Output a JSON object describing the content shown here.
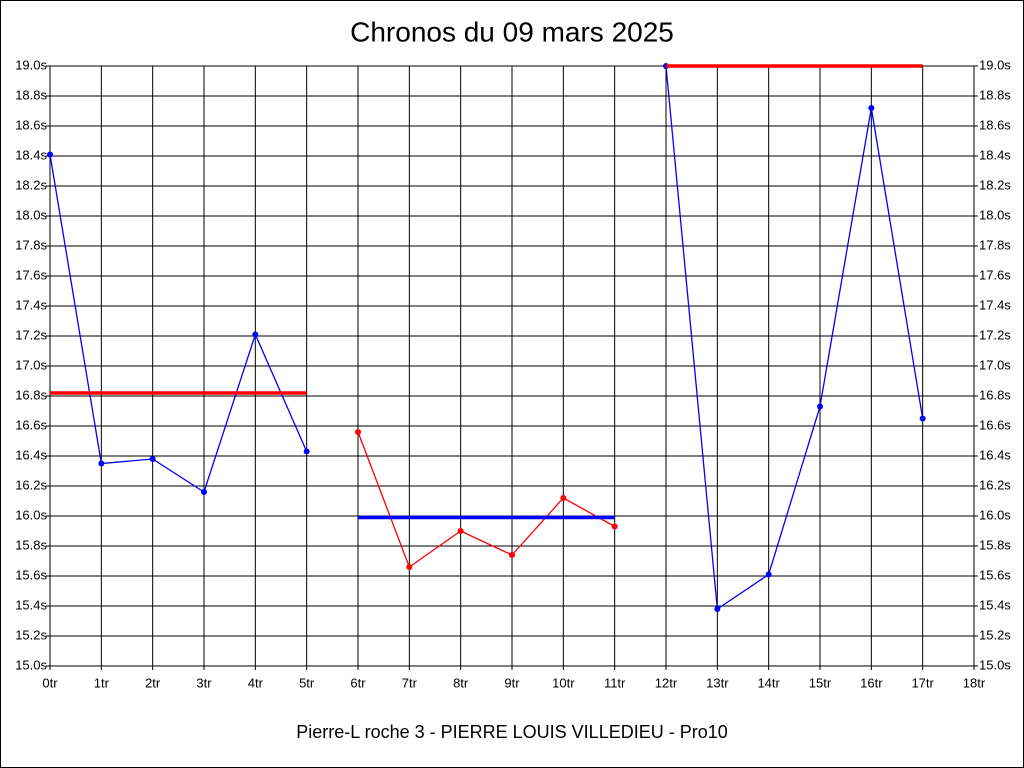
{
  "chart_data": {
    "type": "line",
    "title": "Chronos du 09 mars 2025",
    "xlabel": "Pierre-L roche 3 - PIERRE LOUIS VILLEDIEU - Pro10",
    "xlim": [
      0,
      18
    ],
    "ylim": [
      15,
      19
    ],
    "y2lim": [
      15,
      19
    ],
    "grid": true,
    "xticks": [
      {
        "value": 0,
        "label": "0tr"
      },
      {
        "value": 1,
        "label": "1tr"
      },
      {
        "value": 2,
        "label": "2tr"
      },
      {
        "value": 3,
        "label": "3tr"
      },
      {
        "value": 4,
        "label": "4tr"
      },
      {
        "value": 5,
        "label": "5tr"
      },
      {
        "value": 6,
        "label": "6tr"
      },
      {
        "value": 7,
        "label": "7tr"
      },
      {
        "value": 8,
        "label": "8tr"
      },
      {
        "value": 9,
        "label": "9tr"
      },
      {
        "value": 10,
        "label": "10tr"
      },
      {
        "value": 11,
        "label": "11tr"
      },
      {
        "value": 12,
        "label": "12tr"
      },
      {
        "value": 13,
        "label": "13tr"
      },
      {
        "value": 14,
        "label": "14tr"
      },
      {
        "value": 15,
        "label": "15tr"
      },
      {
        "value": 16,
        "label": "16tr"
      },
      {
        "value": 17,
        "label": "17tr"
      },
      {
        "value": 18,
        "label": "18tr"
      }
    ],
    "yticks": [
      {
        "value": 15.0,
        "label": "15.0s"
      },
      {
        "value": 15.2,
        "label": "15.2s"
      },
      {
        "value": 15.4,
        "label": "15.4s"
      },
      {
        "value": 15.6,
        "label": "15.6s"
      },
      {
        "value": 15.8,
        "label": "15.8s"
      },
      {
        "value": 16.0,
        "label": "16.0s"
      },
      {
        "value": 16.2,
        "label": "16.2s"
      },
      {
        "value": 16.4,
        "label": "16.4s"
      },
      {
        "value": 16.6,
        "label": "16.6s"
      },
      {
        "value": 16.8,
        "label": "16.8s"
      },
      {
        "value": 17.0,
        "label": "17.0s"
      },
      {
        "value": 17.2,
        "label": "17.2s"
      },
      {
        "value": 17.4,
        "label": "17.4s"
      },
      {
        "value": 17.6,
        "label": "17.6s"
      },
      {
        "value": 17.8,
        "label": "17.8s"
      },
      {
        "value": 18.0,
        "label": "18.0s"
      },
      {
        "value": 18.2,
        "label": "18.2s"
      },
      {
        "value": 18.4,
        "label": "18.4s"
      },
      {
        "value": 18.6,
        "label": "18.6s"
      },
      {
        "value": 18.8,
        "label": "18.8s"
      },
      {
        "value": 19.0,
        "label": "19.0s"
      }
    ],
    "y2ticks": [
      {
        "value": 15.0,
        "label": "15.0s"
      },
      {
        "value": 15.2,
        "label": "15.2s"
      },
      {
        "value": 15.4,
        "label": "15.4s"
      },
      {
        "value": 15.6,
        "label": "15.6s"
      },
      {
        "value": 15.8,
        "label": "15.8s"
      },
      {
        "value": 16.0,
        "label": "16.0s"
      },
      {
        "value": 16.2,
        "label": "16.2s"
      },
      {
        "value": 16.4,
        "label": "16.4s"
      },
      {
        "value": 16.6,
        "label": "16.6s"
      },
      {
        "value": 16.8,
        "label": "16.8s"
      },
      {
        "value": 17.0,
        "label": "17.0s"
      },
      {
        "value": 17.2,
        "label": "17.2s"
      },
      {
        "value": 17.4,
        "label": "17.4s"
      },
      {
        "value": 17.6,
        "label": "17.6s"
      },
      {
        "value": 17.8,
        "label": "17.8s"
      },
      {
        "value": 18.0,
        "label": "18.0s"
      },
      {
        "value": 18.2,
        "label": "18.2s"
      },
      {
        "value": 18.4,
        "label": "18.4s"
      },
      {
        "value": 18.6,
        "label": "18.6s"
      },
      {
        "value": 18.8,
        "label": "18.8s"
      },
      {
        "value": 19.0,
        "label": "19.0s"
      }
    ],
    "series": [
      {
        "color": "#0000ff",
        "markers": true,
        "x": [
          0,
          1,
          2,
          3,
          4,
          5
        ],
        "values": [
          18.41,
          16.35,
          16.38,
          16.16,
          17.21,
          16.43
        ]
      },
      {
        "color": "#ff0000",
        "markers": false,
        "x": [
          0,
          5
        ],
        "values": [
          16.82,
          16.82
        ]
      },
      {
        "color": "#ff0000",
        "markers": true,
        "x": [
          6,
          7,
          8,
          9,
          10,
          11
        ],
        "values": [
          16.56,
          15.66,
          15.9,
          15.74,
          16.12,
          15.93
        ]
      },
      {
        "color": "#0000ff",
        "markers": false,
        "x": [
          6,
          11
        ],
        "values": [
          15.99,
          15.99
        ]
      },
      {
        "color": "#0000ff",
        "markers": true,
        "x": [
          12,
          13,
          14,
          15,
          16,
          17
        ],
        "values": [
          19.0,
          15.38,
          15.61,
          16.73,
          18.72,
          16.65
        ]
      },
      {
        "color": "#ff0000",
        "markers": false,
        "x": [
          12,
          17
        ],
        "values": [
          19.0,
          19.0
        ]
      }
    ]
  }
}
